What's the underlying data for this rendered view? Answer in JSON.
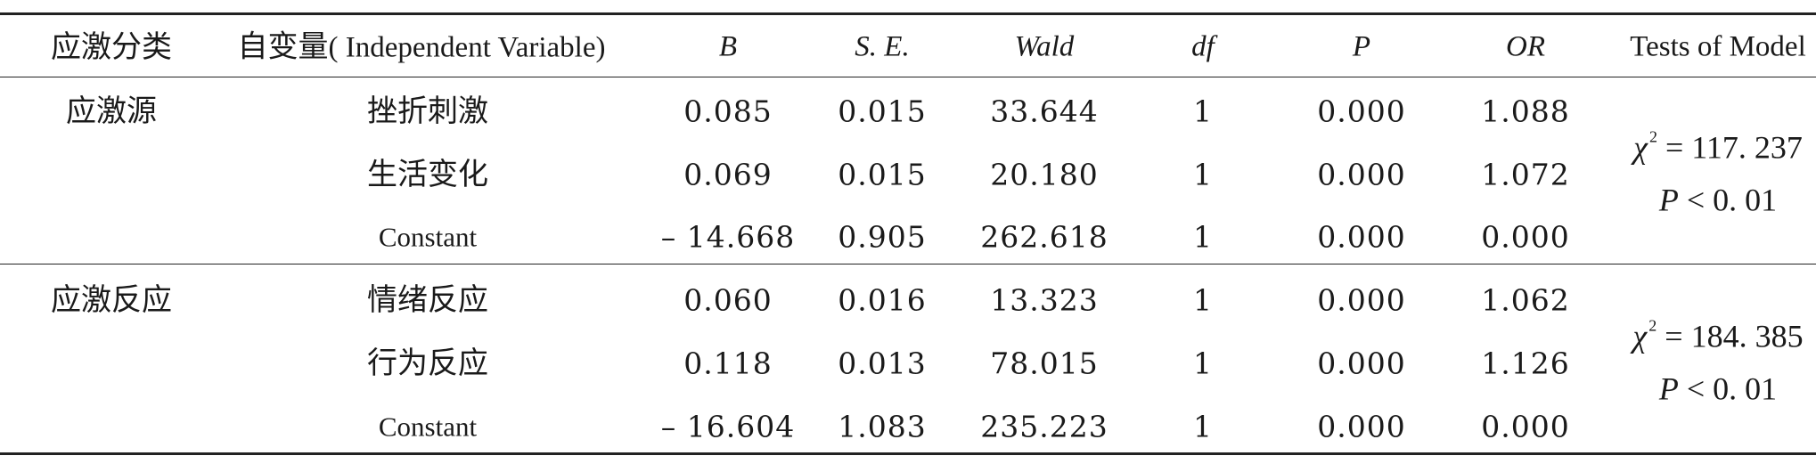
{
  "header": {
    "category": "应激分类",
    "independent_cjk": "自变量",
    "independent_en": "( Independent Variable)",
    "B": "B",
    "SE": "S. E.",
    "Wald": "Wald",
    "df": "df",
    "P": "P",
    "OR": "OR",
    "model": "Tests of Model"
  },
  "groups": [
    {
      "category": "应激源",
      "rows": [
        {
          "var": "挫折刺激",
          "B": "0.085",
          "SE": "0.015",
          "Wald": "33.644",
          "df": "1",
          "P": "0.000",
          "OR": "1.088"
        },
        {
          "var": "生活变化",
          "B": "0.069",
          "SE": "0.015",
          "Wald": "20.180",
          "df": "1",
          "P": "0.000",
          "OR": "1.072"
        },
        {
          "var": "Constant",
          "B": "– 14.668",
          "SE": "0.905",
          "Wald": "262.618",
          "df": "1",
          "P": "0.000",
          "OR": "0.000"
        }
      ],
      "model": {
        "chi_label": "χ",
        "chi_exp": "2",
        "chi_value": "= 117. 237",
        "p_label": "P",
        "p_value": "< 0. 01"
      }
    },
    {
      "category": "应激反应",
      "rows": [
        {
          "var": "情绪反应",
          "B": "0.060",
          "SE": "0.016",
          "Wald": "13.323",
          "df": "1",
          "P": "0.000",
          "OR": "1.062"
        },
        {
          "var": "行为反应",
          "B": "0.118",
          "SE": "0.013",
          "Wald": "78.015",
          "df": "1",
          "P": "0.000",
          "OR": "1.126"
        },
        {
          "var": "Constant",
          "B": "– 16.604",
          "SE": "1.083",
          "Wald": "235.223",
          "df": "1",
          "P": "0.000",
          "OR": "0.000"
        }
      ],
      "model": {
        "chi_label": "χ",
        "chi_exp": "2",
        "chi_value": "= 184. 385",
        "p_label": "P",
        "p_value": "< 0. 01"
      }
    }
  ]
}
